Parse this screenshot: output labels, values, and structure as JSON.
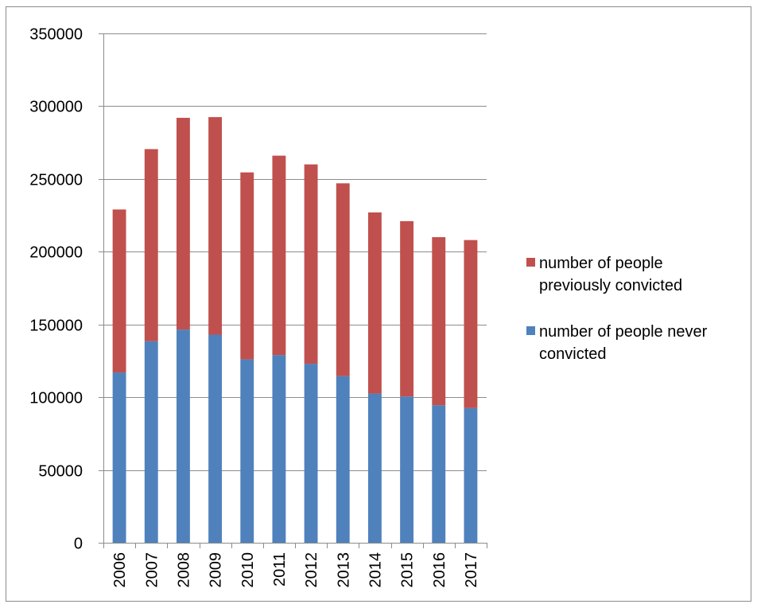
{
  "chart_data": {
    "type": "bar",
    "stacked": true,
    "categories": [
      "2006",
      "2007",
      "2008",
      "2009",
      "2010",
      "2011",
      "2012",
      "2013",
      "2014",
      "2015",
      "2016",
      "2017"
    ],
    "series": [
      {
        "name": "number of people never convicted",
        "color": "#4f81bd",
        "values": [
          117000,
          138500,
          146500,
          143000,
          126000,
          129000,
          123000,
          114500,
          102500,
          100500,
          94500,
          92500
        ]
      },
      {
        "name": "number of people previously convicted",
        "color": "#c0504d",
        "values": [
          112000,
          132000,
          145500,
          149500,
          128500,
          137000,
          137000,
          132500,
          124500,
          120500,
          115500,
          115500
        ]
      }
    ],
    "ylim": [
      0,
      350000
    ],
    "yticks": [
      0,
      50000,
      100000,
      150000,
      200000,
      250000,
      300000,
      350000
    ],
    "ytick_labels": [
      "0",
      "50000",
      "100000",
      "150000",
      "200000",
      "250000",
      "300000",
      "350000"
    ],
    "grid": true,
    "legend_position": "right",
    "legend": [
      {
        "series": 1,
        "lines": [
          "number of people",
          "previously convicted"
        ]
      },
      {
        "series": 0,
        "lines": [
          "number of people never",
          "convicted"
        ]
      }
    ],
    "title": "",
    "xlabel": "",
    "ylabel": ""
  }
}
